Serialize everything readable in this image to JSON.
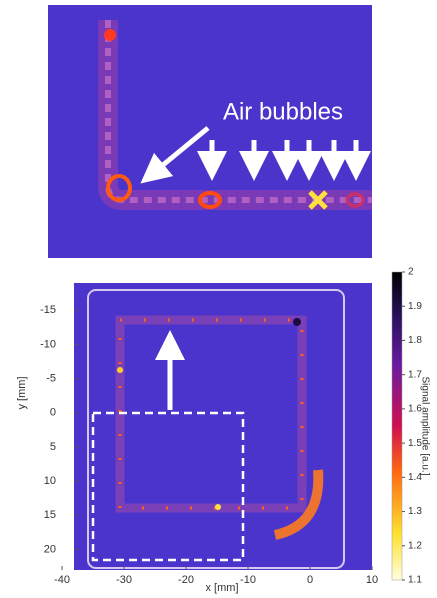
{
  "chart_data": {
    "type": "heatmap",
    "annotation": "Air bubbles",
    "xlabel": "x [mm]",
    "ylabel": "y [mm]",
    "xlim": [
      -40,
      10
    ],
    "xticks": [
      -40,
      -30,
      -20,
      -10,
      0,
      10
    ],
    "ylim": [
      -19,
      23
    ],
    "y_inverted": true,
    "yticks": [
      -15,
      -10,
      -5,
      0,
      5,
      10,
      15,
      20
    ],
    "colorbar": {
      "label": "Signal amplitude [a.u.]",
      "lim": [
        1.1,
        2
      ],
      "ticks": [
        2,
        1.9,
        1.8,
        1.7,
        1.6,
        1.5,
        1.4,
        1.3,
        1.2,
        1.1
      ]
    }
  }
}
